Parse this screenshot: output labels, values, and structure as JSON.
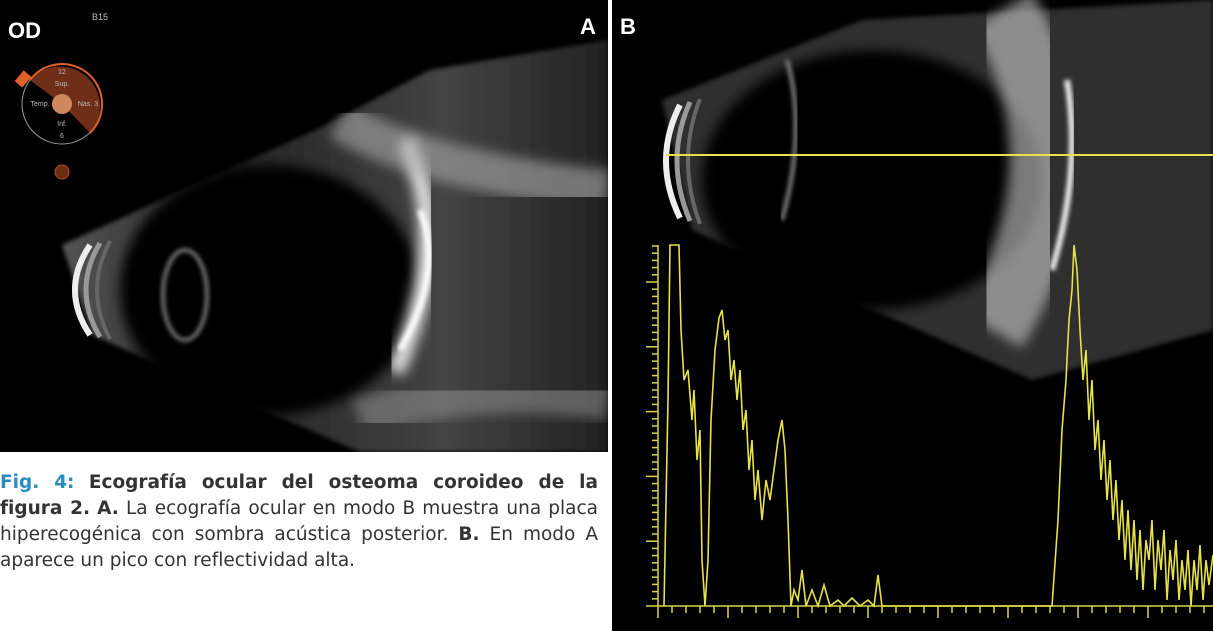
{
  "panel_a": {
    "eye": "OD",
    "code": "B15",
    "letter": "A",
    "clock": {
      "top": "12",
      "sup": "Sup.",
      "temp": "Temp.",
      "nas": "Nas. 3",
      "inf": "Inf.",
      "bottom": "6"
    }
  },
  "panel_b": {
    "letter": "B"
  },
  "caption": {
    "label": "Fig. 4:",
    "title": "Ecografía ocular del osteoma coroideo de la figura 2.",
    "a_label": "A.",
    "a_text": "La ecografía ocular en modo B muestra una placa hiperecogénica con sombra acústica posterior.",
    "b_label": "B.",
    "b_text": "En modo A aparece un pico con reflectividad alta."
  }
}
